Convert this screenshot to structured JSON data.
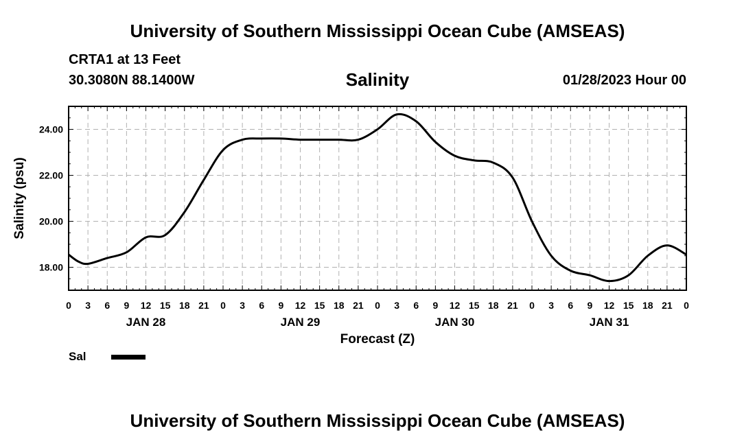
{
  "header": {
    "title": "University of Southern Mississippi Ocean Cube (AMSEAS)",
    "station": "CRTA1 at 13 Feet",
    "coordinates": "30.3080N  88.1400W",
    "chart_title": "Salinity",
    "run_time": "01/28/2023 Hour 00"
  },
  "footer": {
    "title": "University of Southern Mississippi Ocean Cube (AMSEAS)"
  },
  "chart_data": {
    "type": "line",
    "title": "Salinity",
    "xlabel": "Forecast (Z)",
    "ylabel": "Salinity (psu)",
    "xlim": [
      0,
      96
    ],
    "ylim": [
      17,
      25
    ],
    "grid": true,
    "x_tick_hours": [
      0,
      3,
      6,
      9,
      12,
      15,
      18,
      21,
      24,
      27,
      30,
      33,
      36,
      39,
      42,
      45,
      48,
      51,
      54,
      57,
      60,
      63,
      66,
      69,
      72,
      75,
      78,
      81,
      84,
      87,
      90,
      93,
      96
    ],
    "x_tick_labels": [
      "0",
      "3",
      "6",
      "9",
      "12",
      "15",
      "18",
      "21",
      "0",
      "3",
      "6",
      "9",
      "12",
      "15",
      "18",
      "21",
      "0",
      "3",
      "6",
      "9",
      "12",
      "15",
      "18",
      "21",
      "0",
      "3",
      "6",
      "9",
      "12",
      "15",
      "18",
      "21",
      "0"
    ],
    "date_labels": [
      {
        "hour": 12,
        "label": "JAN 28"
      },
      {
        "hour": 36,
        "label": "JAN 29"
      },
      {
        "hour": 60,
        "label": "JAN 30"
      },
      {
        "hour": 84,
        "label": "JAN 31"
      }
    ],
    "y_ticks": [
      18,
      20,
      22,
      24
    ],
    "y_tick_labels": [
      "18.00",
      "20.00",
      "22.00",
      "24.00"
    ],
    "legend": {
      "placement": "bottom-left",
      "entries": [
        "Sal"
      ]
    },
    "series": [
      {
        "name": "Sal",
        "color": "#000000",
        "x": [
          0,
          1.5,
          3,
          6,
          9,
          12,
          15,
          18,
          21,
          24,
          27,
          30,
          33,
          36,
          39,
          42,
          45,
          48,
          51,
          54,
          57,
          60,
          63,
          66,
          69,
          72,
          75,
          78,
          81,
          84,
          87,
          90,
          93,
          96
        ],
        "y": [
          18.55,
          18.25,
          18.15,
          18.4,
          18.65,
          19.3,
          19.4,
          20.4,
          21.8,
          23.1,
          23.55,
          23.6,
          23.6,
          23.55,
          23.55,
          23.55,
          23.55,
          24.0,
          24.65,
          24.35,
          23.45,
          22.85,
          22.65,
          22.55,
          21.9,
          20.0,
          18.5,
          17.85,
          17.65,
          17.4,
          17.65,
          18.5,
          18.95,
          18.55
        ]
      }
    ]
  }
}
